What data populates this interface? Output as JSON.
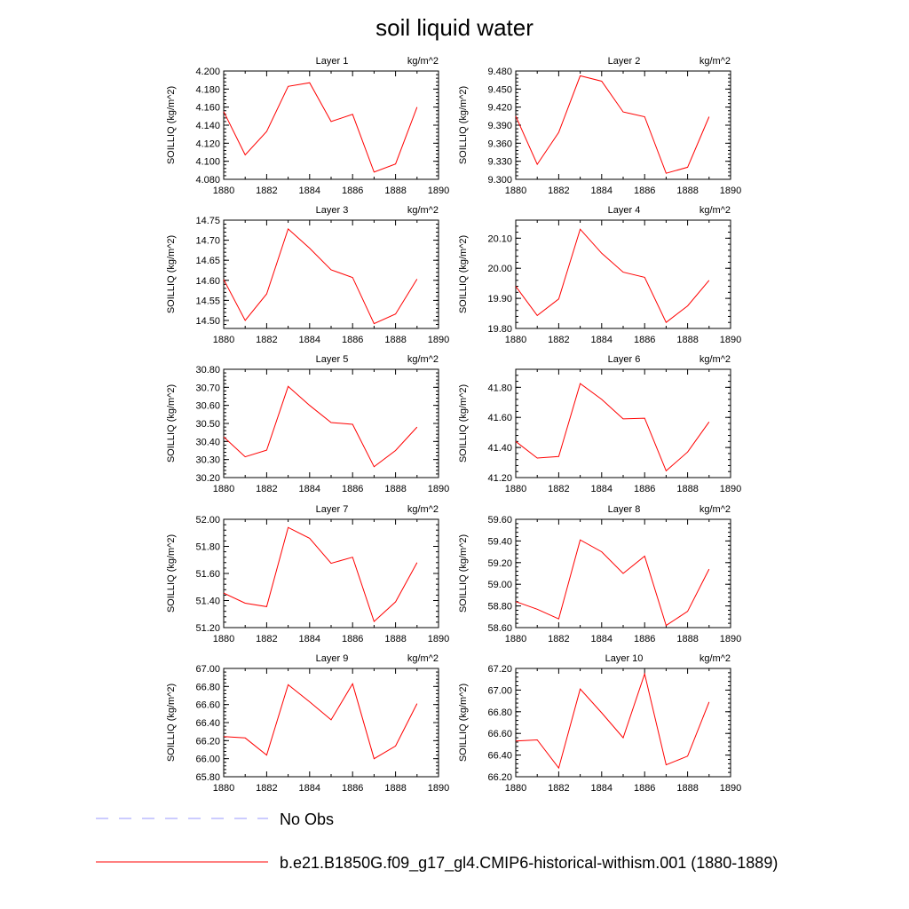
{
  "chart_data": {
    "type": "line",
    "title": "soil liquid water",
    "x": [
      1880,
      1881,
      1882,
      1883,
      1884,
      1885,
      1886,
      1887,
      1888,
      1889
    ],
    "xlim": [
      1880,
      1890
    ],
    "x_ticks": [
      "1880",
      "1882",
      "1884",
      "1886",
      "1888",
      "1890"
    ],
    "series_color": "#ff0000",
    "obs_color": "#9999ff",
    "legend": [
      {
        "label": "No Obs",
        "style": "dashed",
        "color": "#9999ff"
      },
      {
        "label": "b.e21.B1850G.f09_g17_gl4.CMIP6-historical-withism.001 (1880-1889)",
        "style": "solid",
        "color": "#ff0000"
      }
    ],
    "panels": [
      {
        "title": "Layer 1",
        "units": "kg/m^2",
        "ylabel": "SOILLIQ  (kg/m^2)",
        "ylim": [
          4.08,
          4.2
        ],
        "yticks": [
          "4.080",
          "4.100",
          "4.120",
          "4.140",
          "4.160",
          "4.180",
          "4.200"
        ],
        "values": [
          4.155,
          4.107,
          4.133,
          4.183,
          4.187,
          4.144,
          4.152,
          4.088,
          4.097,
          4.16
        ]
      },
      {
        "title": "Layer 2",
        "units": "kg/m^2",
        "ylabel": "SOILLIQ  (kg/m^2)",
        "ylim": [
          9.3,
          9.48
        ],
        "yticks": [
          "9.300",
          "9.330",
          "9.360",
          "9.390",
          "9.420",
          "9.450",
          "9.480"
        ],
        "values": [
          9.405,
          9.325,
          9.378,
          9.472,
          9.463,
          9.412,
          9.404,
          9.31,
          9.32,
          9.404
        ]
      },
      {
        "title": "Layer 3",
        "units": "kg/m^2",
        "ylabel": "SOILLIQ  (kg/m^2)",
        "ylim": [
          14.48,
          14.75
        ],
        "yticks": [
          "14.50",
          "14.55",
          "14.60",
          "14.65",
          "14.70",
          "14.75"
        ],
        "values": [
          14.602,
          14.5,
          14.566,
          14.728,
          14.68,
          14.626,
          14.607,
          14.492,
          14.516,
          14.603
        ]
      },
      {
        "title": "Layer 4",
        "units": "kg/m^2",
        "ylabel": "SOILLIQ  (kg/m^2)",
        "ylim": [
          19.8,
          20.16
        ],
        "yticks": [
          "19.80",
          "19.90",
          "20.00",
          "20.10"
        ],
        "values": [
          19.94,
          19.843,
          19.898,
          20.13,
          20.05,
          19.987,
          19.97,
          19.82,
          19.875,
          19.96
        ]
      },
      {
        "title": "Layer 5",
        "units": "kg/m^2",
        "ylabel": "SOILLIQ  (kg/m^2)",
        "ylim": [
          30.2,
          30.8
        ],
        "yticks": [
          "30.20",
          "30.30",
          "30.40",
          "30.50",
          "30.60",
          "30.70",
          "30.80"
        ],
        "values": [
          30.425,
          30.315,
          30.352,
          30.705,
          30.6,
          30.505,
          30.495,
          30.26,
          30.35,
          30.48
        ]
      },
      {
        "title": "Layer 6",
        "units": "kg/m^2",
        "ylabel": "SOILLIQ  (kg/m^2)",
        "ylim": [
          41.2,
          41.92
        ],
        "yticks": [
          "41.20",
          "41.40",
          "41.60",
          "41.80"
        ],
        "values": [
          41.44,
          41.33,
          41.34,
          41.825,
          41.72,
          41.59,
          41.595,
          41.245,
          41.37,
          41.57
        ]
      },
      {
        "title": "Layer 7",
        "units": "kg/m^2",
        "ylabel": "SOILLIQ  (kg/m^2)",
        "ylim": [
          51.2,
          52.0
        ],
        "yticks": [
          "51.20",
          "51.40",
          "51.60",
          "51.80",
          "52.00"
        ],
        "values": [
          51.455,
          51.38,
          51.355,
          51.94,
          51.86,
          51.675,
          51.72,
          51.245,
          51.39,
          51.68
        ]
      },
      {
        "title": "Layer 8",
        "units": "kg/m^2",
        "ylabel": "SOILLIQ  (kg/m^2)",
        "ylim": [
          58.6,
          59.6
        ],
        "yticks": [
          "58.60",
          "58.80",
          "59.00",
          "59.20",
          "59.40",
          "59.60"
        ],
        "values": [
          58.84,
          58.77,
          58.68,
          59.41,
          59.3,
          59.1,
          59.26,
          58.62,
          58.75,
          59.14
        ]
      },
      {
        "title": "Layer 9",
        "units": "kg/m^2",
        "ylabel": "SOILLIQ  (kg/m^2)",
        "ylim": [
          65.8,
          67.0
        ],
        "yticks": [
          "65.80",
          "66.00",
          "66.20",
          "66.40",
          "66.60",
          "66.80",
          "67.00"
        ],
        "values": [
          66.245,
          66.23,
          66.04,
          66.82,
          66.63,
          66.43,
          66.83,
          66.0,
          66.14,
          66.61
        ]
      },
      {
        "title": "Layer 10",
        "units": "kg/m^2",
        "ylabel": "SOILLIQ  (kg/m^2)",
        "ylim": [
          66.2,
          67.2
        ],
        "yticks": [
          "66.20",
          "66.40",
          "66.60",
          "66.80",
          "67.00",
          "67.20"
        ],
        "values": [
          66.53,
          66.54,
          66.28,
          67.01,
          66.79,
          66.56,
          67.15,
          66.31,
          66.39,
          66.89
        ]
      }
    ]
  }
}
